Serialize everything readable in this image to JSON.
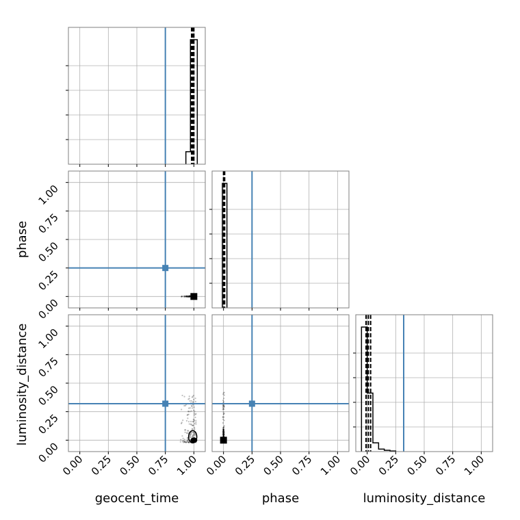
{
  "chart_data": {
    "type": "corner",
    "parameters": [
      "geocent_time",
      "phase",
      "luminosity_distance"
    ],
    "axis_limits": {
      "geocent_time": [
        -0.1,
        1.1
      ],
      "phase": [
        -0.1,
        1.1
      ],
      "luminosity_distance": [
        -0.1,
        1.1
      ]
    },
    "ticks": [
      0.0,
      0.25,
      0.5,
      0.75,
      1.0
    ],
    "tick_labels": [
      "0.00",
      "0.25",
      "0.50",
      "0.75",
      "1.00"
    ],
    "truths": {
      "geocent_time": 0.75,
      "phase": 0.25,
      "luminosity_distance": 0.32
    },
    "quantile_lines": {
      "geocent_time": [
        0.98,
        0.99,
        1.0
      ],
      "phase": [
        0.0,
        0.01
      ],
      "luminosity_distance": [
        -0.01,
        0.01,
        0.03
      ]
    },
    "histograms": {
      "geocent_time": {
        "bin_edges": [
          0.93,
          0.97,
          1.03
        ],
        "counts": [
          0.1,
          1.0
        ]
      },
      "phase": {
        "bin_edges": [
          -0.01,
          0.03
        ],
        "counts": [
          1.0
        ]
      },
      "luminosity_distance": {
        "bin_edges": [
          -0.05,
          0.0,
          0.05,
          0.1,
          0.15,
          0.2,
          0.25
        ],
        "counts": [
          1.0,
          0.47,
          0.07,
          0.02,
          0.01,
          0.005
        ]
      }
    },
    "grid": true,
    "colors": {
      "truth": "#4682b4",
      "samples": "#000000",
      "grid": "#b0b0b0"
    }
  }
}
